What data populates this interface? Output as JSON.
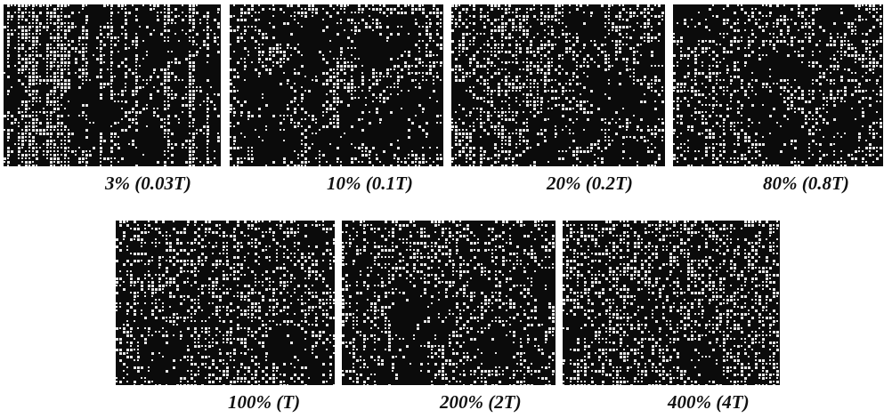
{
  "panels": [
    {
      "caption": "3% (0.03T)"
    },
    {
      "caption": "10% (0.1T)"
    },
    {
      "caption": "20% (0.2T)"
    },
    {
      "caption": "80% (0.8T)"
    },
    {
      "caption": "100% (T)"
    },
    {
      "caption": "200% (2T)"
    },
    {
      "caption": "400% (4T)"
    }
  ]
}
